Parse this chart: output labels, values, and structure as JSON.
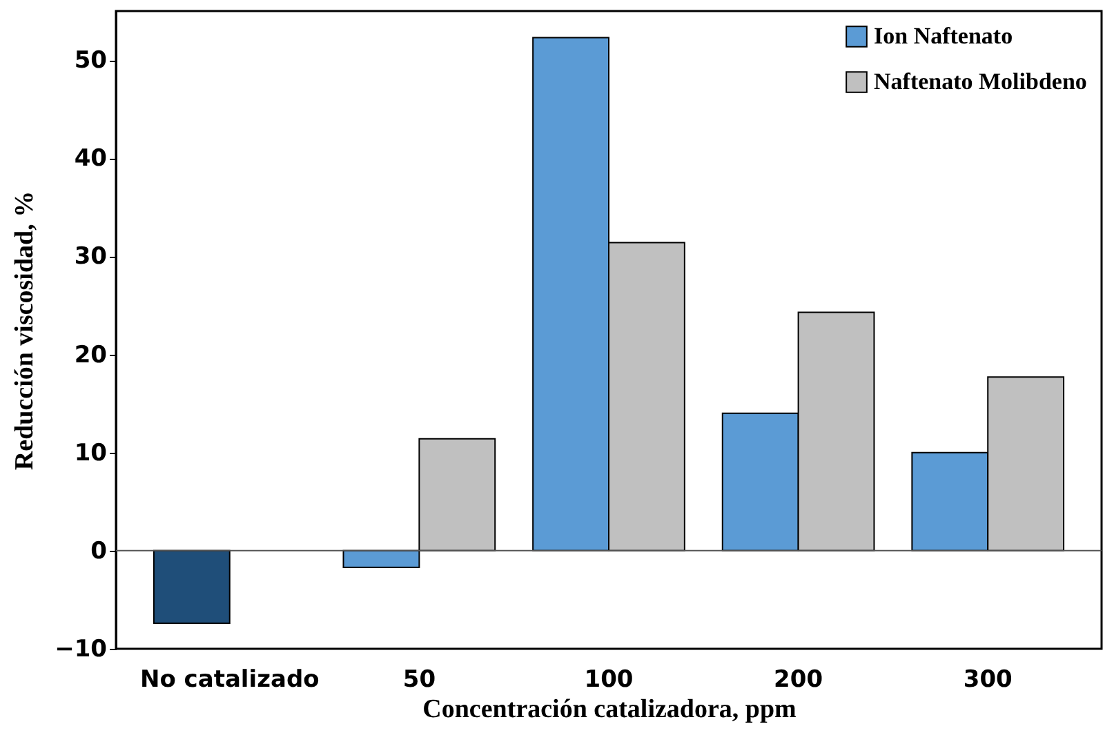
{
  "chart_data": {
    "type": "bar",
    "xlabel": "Concentración catalizadora, ppm",
    "ylabel": "Reducción viscosidad, %",
    "categories": [
      "No catalizado",
      "50",
      "100",
      "200",
      "300"
    ],
    "series": [
      {
        "name": "Ion Naftenato",
        "color": "#5b9bd5",
        "colors": [
          "#1f4e79",
          "#5b9bd5",
          "#5b9bd5",
          "#5b9bd5",
          "#5b9bd5"
        ],
        "values": [
          -7.4,
          -1.7,
          52.3,
          14.0,
          10.0
        ]
      },
      {
        "name": "Naftenato Molibdeno",
        "color": "#c0c0c0",
        "values": [
          null,
          11.4,
          31.4,
          24.3,
          17.7
        ]
      }
    ],
    "ylim": [
      -10,
      55
    ],
    "yticks": [
      -10,
      0,
      10,
      20,
      30,
      40,
      50
    ],
    "grid": false,
    "ref_lines": [
      {
        "axis": "y",
        "value": 0,
        "color": "#555555"
      }
    ],
    "legend": "top right"
  }
}
